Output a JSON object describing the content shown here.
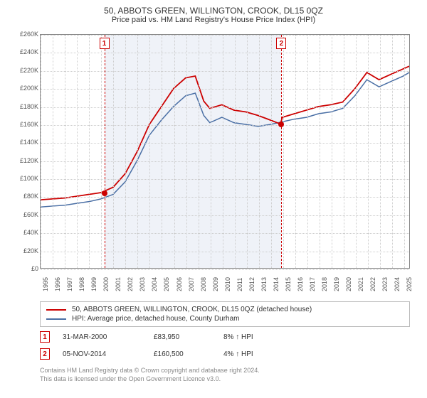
{
  "title_line1": "50, ABBOTS GREEN, WILLINGTON, CROOK, DL15 0QZ",
  "title_line2": "Price paid vs. HM Land Registry's House Price Index (HPI)",
  "chart": {
    "type": "line",
    "background_color": "#ffffff",
    "grid_color": "#cccccc",
    "border_color": "#888888",
    "ymin": 0,
    "ymax": 260000,
    "ytick_step": 20000,
    "yticks": [
      "£0",
      "£20K",
      "£40K",
      "£60K",
      "£80K",
      "£100K",
      "£120K",
      "£140K",
      "£160K",
      "£180K",
      "£200K",
      "£220K",
      "£240K",
      "£260K"
    ],
    "xmin": 1995,
    "xmax": 2025.5,
    "xticks": [
      1995,
      1996,
      1997,
      1998,
      1999,
      2000,
      2001,
      2002,
      2003,
      2004,
      2005,
      2006,
      2007,
      2008,
      2009,
      2010,
      2011,
      2012,
      2013,
      2014,
      2015,
      2016,
      2017,
      2018,
      2019,
      2020,
      2021,
      2022,
      2023,
      2024,
      2025
    ],
    "band_color": "#e8edf5",
    "flag_border_color": "#cc0000",
    "series_red": {
      "color": "#cc0000",
      "width": 1.8,
      "label": "50, ABBOTS GREEN, WILLINGTON, CROOK, DL15 0QZ (detached house)",
      "x": [
        1995,
        1996,
        1997,
        1998,
        1999,
        2000,
        2001,
        2002,
        2003,
        2004,
        2005,
        2006,
        2007,
        2007.8,
        2008.5,
        2009,
        2010,
        2011,
        2012,
        2013,
        2014,
        2014.85,
        2015,
        2016,
        2017,
        2018,
        2019,
        2020,
        2021,
        2022,
        2023,
        2024,
        2025,
        2025.5
      ],
      "y": [
        76000,
        77000,
        78000,
        80000,
        82000,
        83950,
        90000,
        105000,
        130000,
        160000,
        180000,
        200000,
        212000,
        214000,
        186000,
        178000,
        182000,
        176000,
        174000,
        170000,
        165000,
        160500,
        168000,
        172000,
        176000,
        180000,
        182000,
        185000,
        200000,
        218000,
        210000,
        216000,
        222000,
        225000
      ]
    },
    "series_blue": {
      "color": "#4a6fa5",
      "width": 1.5,
      "label": "HPI: Average price, detached house, County Durham",
      "x": [
        1995,
        1996,
        1997,
        1998,
        1999,
        2000,
        2001,
        2002,
        2003,
        2004,
        2005,
        2006,
        2007,
        2007.8,
        2008.5,
        2009,
        2010,
        2011,
        2012,
        2013,
        2014,
        2015,
        2016,
        2017,
        2018,
        2019,
        2020,
        2021,
        2022,
        2023,
        2024,
        2025,
        2025.5
      ],
      "y": [
        68000,
        69000,
        70000,
        72000,
        74000,
        77000,
        82000,
        96000,
        120000,
        148000,
        165000,
        180000,
        192000,
        195000,
        170000,
        162000,
        168000,
        162000,
        160000,
        158000,
        160000,
        163000,
        166000,
        168000,
        172000,
        174000,
        178000,
        192000,
        210000,
        202000,
        208000,
        214000,
        218000
      ]
    },
    "sales_points": [
      {
        "flag": "1",
        "x": 2000.25,
        "y": 83950
      },
      {
        "flag": "2",
        "x": 2014.85,
        "y": 160500
      }
    ]
  },
  "legend": {
    "items": [
      {
        "color": "#cc0000",
        "label": "50, ABBOTS GREEN, WILLINGTON, CROOK, DL15 0QZ (detached house)"
      },
      {
        "color": "#4a6fa5",
        "label": "HPI: Average price, detached house, County Durham"
      }
    ]
  },
  "sales": [
    {
      "flag": "1",
      "date": "31-MAR-2000",
      "price": "£83,950",
      "diff": "8% ↑ HPI"
    },
    {
      "flag": "2",
      "date": "05-NOV-2014",
      "price": "£160,500",
      "diff": "4% ↑ HPI"
    }
  ],
  "footer_line1": "Contains HM Land Registry data © Crown copyright and database right 2024.",
  "footer_line2": "This data is licensed under the Open Government Licence v3.0."
}
